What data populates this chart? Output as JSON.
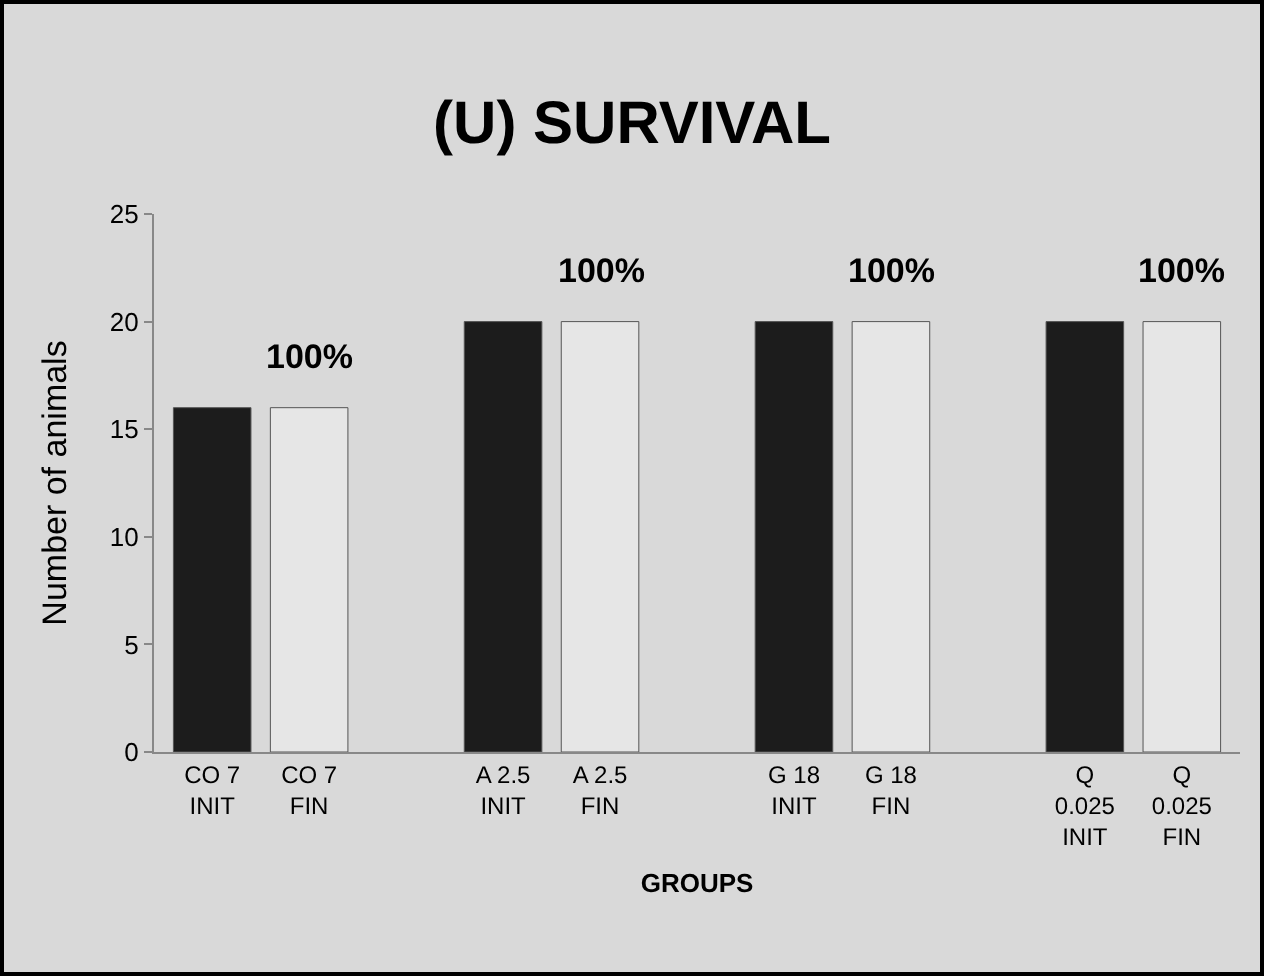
{
  "chart_data": {
    "type": "bar",
    "title": "(U) SURVIVAL",
    "xlabel": "GROUPS",
    "ylabel": "Number of animals",
    "categories": [
      "CO 7\nINIT",
      "CO 7\nFIN",
      null,
      "A 2.5\nINIT",
      "A 2.5\nFIN",
      null,
      "G 18\nINIT",
      "G 18\nFIN",
      null,
      "Q\n0.025\nINIT",
      "Q\n0.025\nFIN"
    ],
    "values": [
      16,
      16,
      null,
      20,
      20,
      null,
      20,
      20,
      null,
      20,
      20
    ],
    "colors": [
      "#1c1c1c",
      "#e6e6e6",
      null,
      "#1c1c1c",
      "#e6e6e6",
      null,
      "#1c1c1c",
      "#e6e6e6",
      null,
      "#1c1c1c",
      "#e6e6e6"
    ],
    "annotations": [
      {
        "text": "100%",
        "x": "CO 7\nFIN",
        "y": 16
      },
      {
        "text": "100%",
        "x": "A 2.5\nFIN",
        "y": 20
      },
      {
        "text": "100%",
        "x": "G 18\nFIN",
        "y": 20
      },
      {
        "text": "100%",
        "x": "Q\n0.025\nFIN",
        "y": 20
      }
    ],
    "ylim": [
      0,
      25
    ],
    "yticks": [
      0,
      5,
      10,
      15,
      20,
      25
    ],
    "grid": false,
    "legend": false
  }
}
